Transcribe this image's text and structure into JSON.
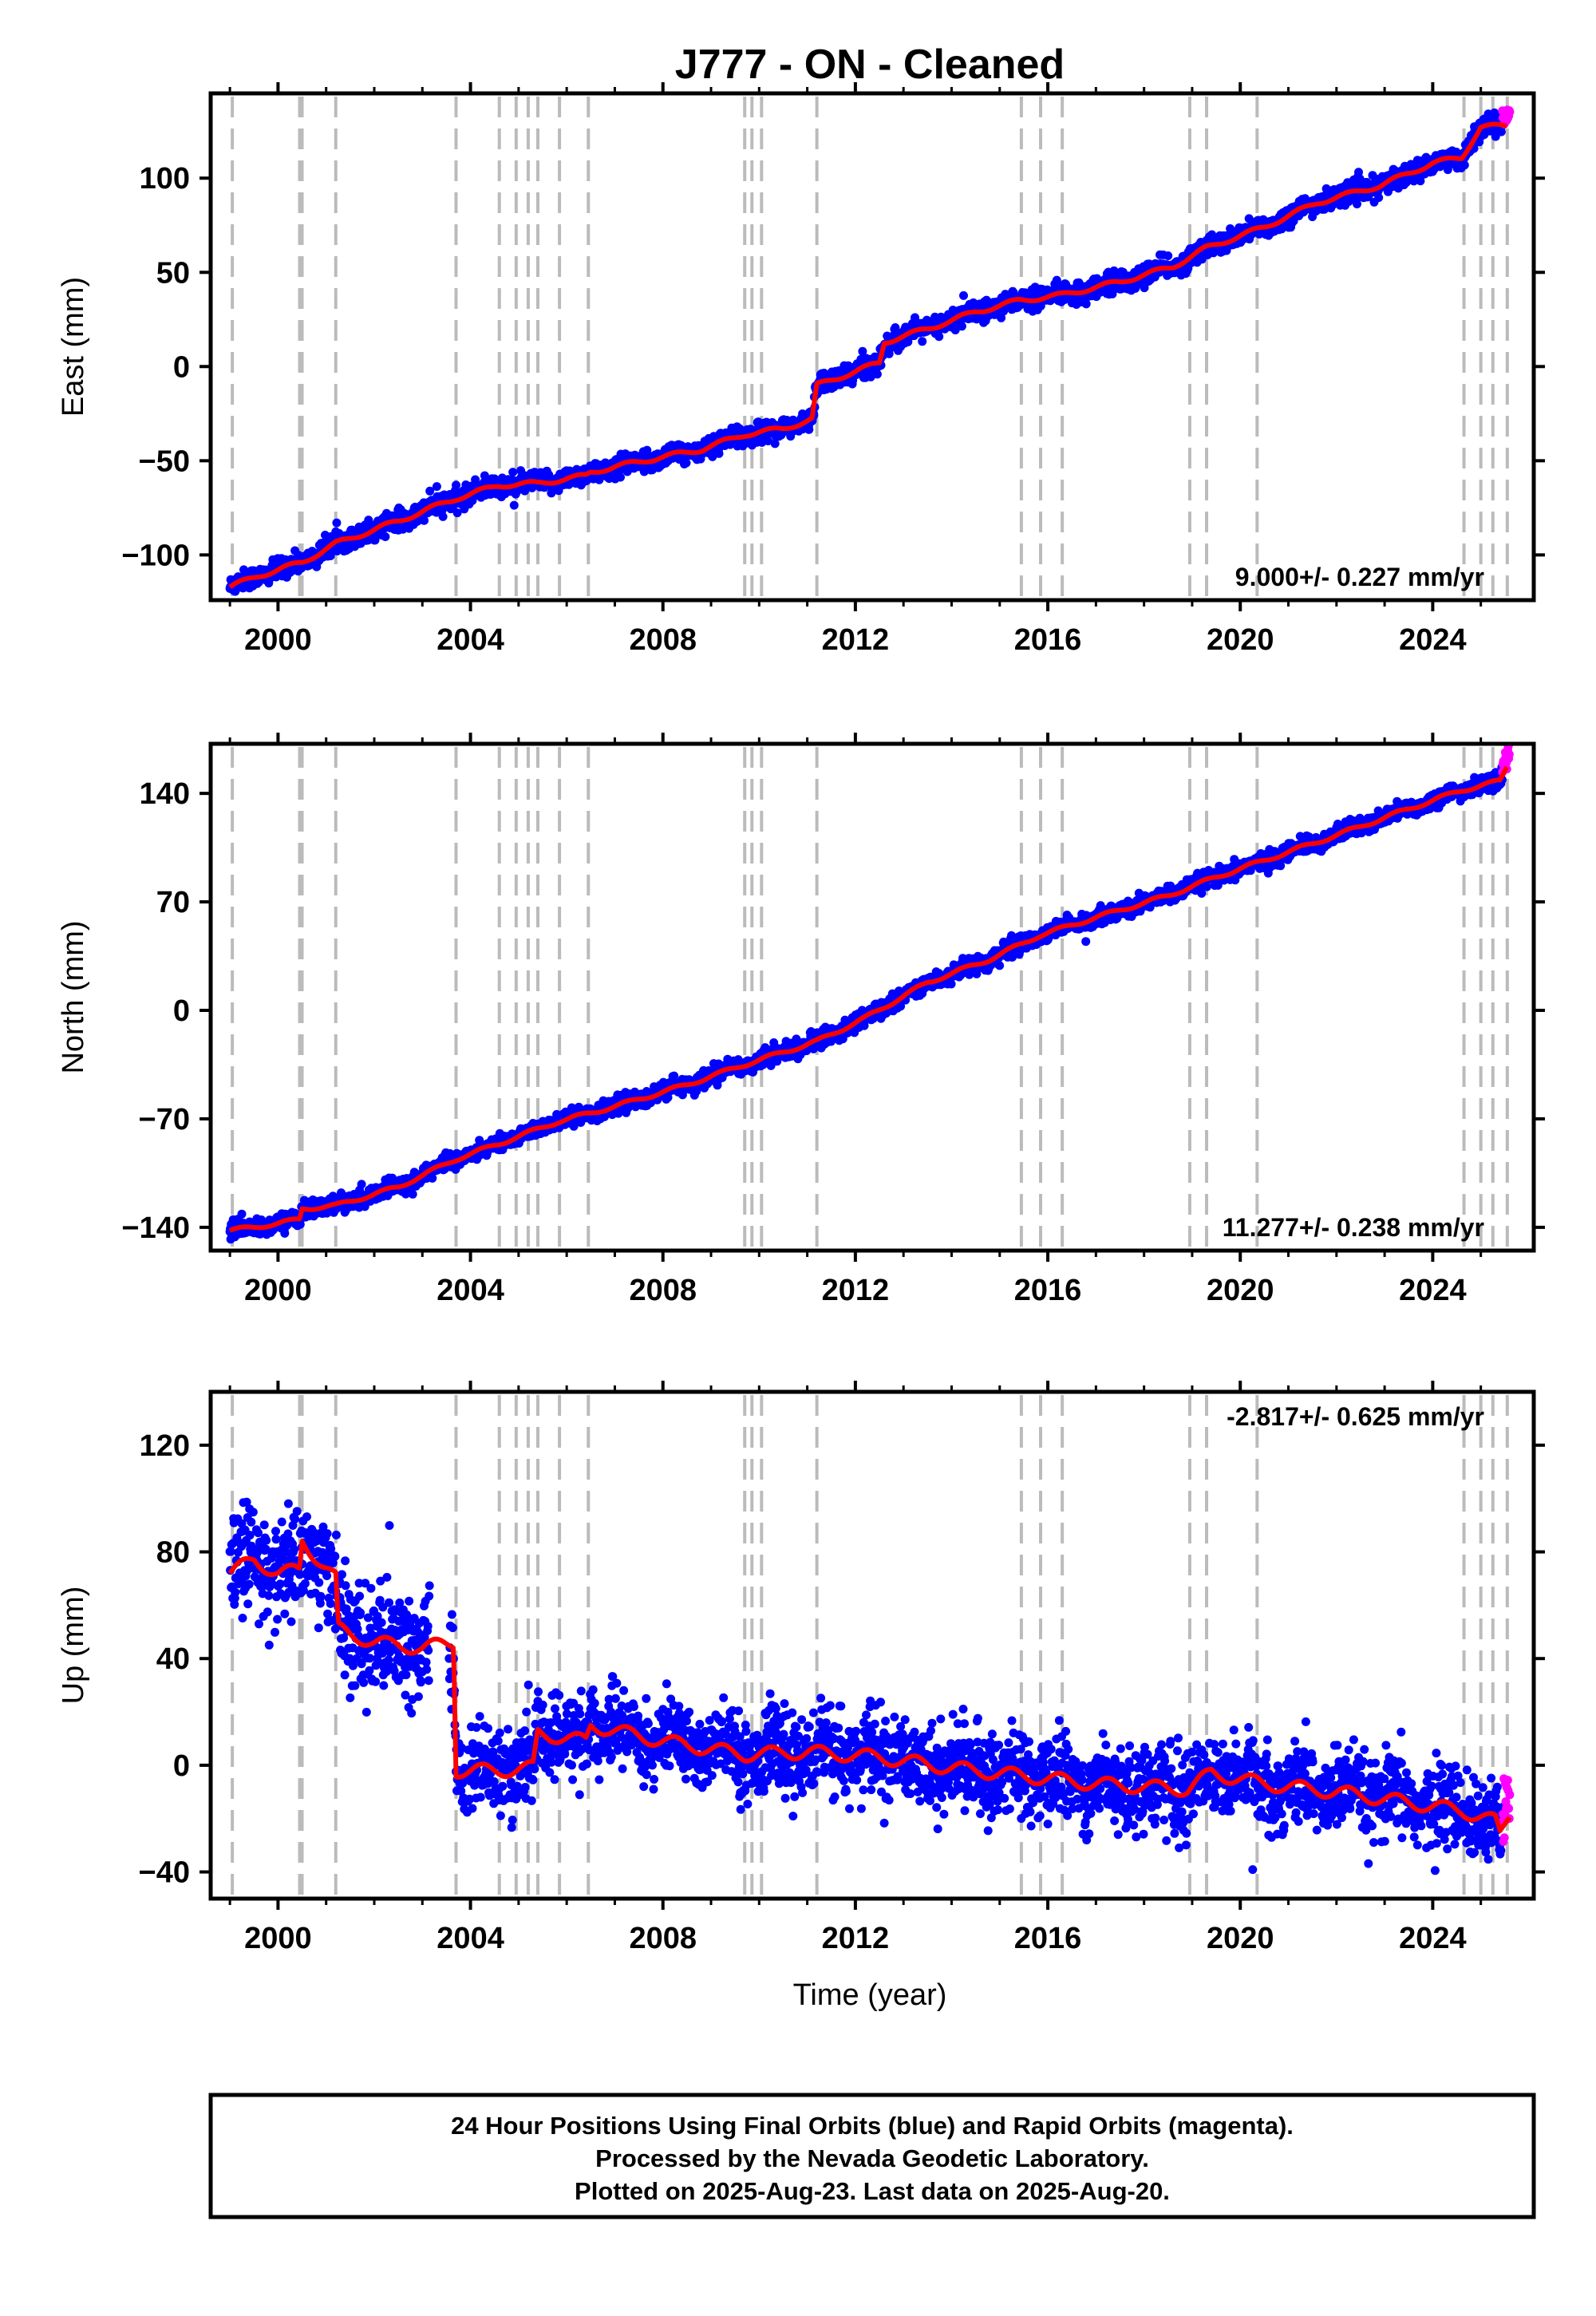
{
  "chart_data": [
    {
      "type": "scatter",
      "title": "J777  - ON - Cleaned",
      "ylabel": "East (mm)",
      "xlim": [
        1998.6,
        2026.1
      ],
      "ylim": [
        -124,
        145
      ],
      "xticks": [
        2000,
        2004,
        2008,
        2012,
        2016,
        2020,
        2024
      ],
      "yticks": [
        -100,
        -50,
        0,
        50,
        100
      ],
      "ytick_labels": [
        "−100",
        "−50",
        "0",
        "50",
        "100"
      ],
      "rate_label": "9.000+/- 0.227 mm/yr",
      "trend": {
        "name": "model",
        "x": [
          1999.0,
          1999.6,
          2000.5,
          2001.2,
          2002.5,
          2003.7,
          2004.6,
          2005.4,
          2006.4,
          2006.5,
          2007.6,
          2008.8,
          2009.7,
          2010.5,
          2011.1,
          2011.2,
          2012.5,
          2012.6,
          2013.5,
          2014.5,
          2015.4,
          2016.3,
          2017.5,
          2018.6,
          2019.3,
          2020.5,
          2021.6,
          2022.9,
          2024.0,
          2024.6,
          2025.0,
          2025.55
        ],
        "y": [
          -117,
          -111,
          -104,
          -94,
          -82,
          -70,
          -63,
          -62,
          -58,
          -56,
          -50,
          -44,
          -36,
          -33,
          -28,
          -10,
          2,
          13,
          20,
          29,
          35,
          38,
          45,
          53,
          63,
          74,
          87,
          96,
          108,
          111,
          127,
          128
        ]
      },
      "series": [
        {
          "name": "Final Orbits",
          "color": "#0000ff",
          "x_range": [
            1999.0,
            2025.45
          ]
        },
        {
          "name": "Rapid Orbits",
          "color": "#ff00ff",
          "x_range": [
            2025.45,
            2025.6
          ]
        }
      ],
      "events": [
        1999.05,
        2000.45,
        2000.5,
        2001.2,
        2003.7,
        2004.6,
        2004.95,
        2005.2,
        2005.4,
        2005.85,
        2006.45,
        2009.7,
        2009.85,
        2010.05,
        2011.2,
        2015.45,
        2015.85,
        2016.3,
        2018.95,
        2019.3,
        2020.35,
        2024.65,
        2025.0,
        2025.25,
        2025.55
      ]
    },
    {
      "type": "scatter",
      "ylabel": "North (mm)",
      "xlim": [
        1998.6,
        2026.1
      ],
      "ylim": [
        -155,
        172
      ],
      "xticks": [
        2000,
        2004,
        2008,
        2012,
        2016,
        2020,
        2024
      ],
      "yticks": [
        -140,
        -70,
        0,
        70,
        140
      ],
      "ytick_labels": [
        "−140",
        "−70",
        "0",
        "70",
        "140"
      ],
      "rate_label": "11.277+/- 0.238 mm/yr",
      "trend": {
        "name": "model",
        "x": [
          1999.0,
          1999.5,
          2000.45,
          2000.5,
          2001.2,
          2002.5,
          2003.7,
          2004.6,
          2005.8,
          2007.0,
          2008.5,
          2009.7,
          2011.2,
          2012.2,
          2013.5,
          2014.8,
          2015.8,
          2017.0,
          2018.5,
          2019.5,
          2020.8,
          2022.0,
          2023.5,
          2024.6,
          2025.4,
          2025.55
        ],
        "y": [
          -142,
          -140,
          -135,
          -128,
          -126,
          -114,
          -96,
          -86,
          -72,
          -62,
          -48,
          -35,
          -20,
          -5,
          18,
          33,
          48,
          60,
          74,
          86,
          100,
          113,
          130,
          142,
          148,
          158
        ]
      },
      "series": [
        {
          "name": "Final Orbits",
          "color": "#0000ff",
          "x_range": [
            1999.0,
            2025.45
          ]
        },
        {
          "name": "Rapid Orbits",
          "color": "#ff00ff",
          "x_range": [
            2025.45,
            2025.6
          ]
        }
      ],
      "events": [
        1999.05,
        2000.45,
        2000.5,
        2001.2,
        2003.7,
        2004.6,
        2004.95,
        2005.2,
        2005.4,
        2005.85,
        2006.45,
        2009.7,
        2009.85,
        2010.05,
        2011.2,
        2015.45,
        2015.85,
        2016.3,
        2018.95,
        2019.3,
        2020.35,
        2024.65,
        2025.0,
        2025.25,
        2025.55
      ]
    },
    {
      "type": "scatter",
      "ylabel": "Up (mm)",
      "xlabel": "Time (year)",
      "xlim": [
        1998.6,
        2026.1
      ],
      "ylim": [
        -50,
        140
      ],
      "xticks": [
        2000,
        2004,
        2008,
        2012,
        2016,
        2020,
        2024
      ],
      "yticks": [
        -40,
        0,
        40,
        80,
        120
      ],
      "ytick_labels": [
        "−40",
        "0",
        "40",
        "80",
        "120"
      ],
      "rate_label": "-2.817+/- 0.625 mm/yr",
      "trend": {
        "name": "model",
        "x": [
          1999.0,
          1999.5,
          2000.0,
          2000.45,
          2000.5,
          2001.2,
          2001.25,
          2002.0,
          2003.0,
          2003.65,
          2003.7,
          2004.6,
          2005.3,
          2005.4,
          2006.4,
          2006.5,
          2008.0,
          2009.7,
          2011.0,
          2012.5,
          2014.0,
          2015.5,
          2017.0,
          2018.9,
          2019.4,
          2020.5,
          2022.0,
          2023.5,
          2024.6,
          2025.3,
          2025.4,
          2025.6
        ],
        "y": [
          72,
          77,
          72,
          73,
          84,
          70,
          51,
          46,
          44,
          46,
          -2,
          -2,
          -1,
          12,
          9,
          15,
          9,
          4,
          5,
          3,
          -1,
          -4,
          -7,
          -9,
          -3,
          -7,
          -10,
          -14,
          -17,
          -21,
          -26,
          -18
        ]
      },
      "series": [
        {
          "name": "Final Orbits",
          "color": "#0000ff",
          "x_range": [
            1999.0,
            2025.45
          ]
        },
        {
          "name": "Rapid Orbits",
          "color": "#ff00ff",
          "x_range": [
            2025.45,
            2025.6
          ]
        }
      ],
      "events": [
        1999.05,
        2000.45,
        2000.5,
        2001.2,
        2003.7,
        2004.6,
        2004.95,
        2005.2,
        2005.4,
        2005.85,
        2006.45,
        2009.7,
        2009.85,
        2010.05,
        2011.2,
        2015.45,
        2015.85,
        2016.3,
        2018.95,
        2019.3,
        2020.35,
        2024.65,
        2025.0,
        2025.25,
        2025.55
      ]
    }
  ],
  "colors": {
    "final_orbits": "#0000ff",
    "rapid_orbits": "#ff00ff",
    "model": "#ff0000",
    "event_lines": "#bbbbbb"
  },
  "caption": {
    "line1": "24 Hour Positions Using Final Orbits (blue) and Rapid Orbits (magenta).",
    "line2": "Processed by the Nevada Geodetic Laboratory.",
    "line3": "Plotted on 2025-Aug-23. Last data on 2025-Aug-20."
  }
}
